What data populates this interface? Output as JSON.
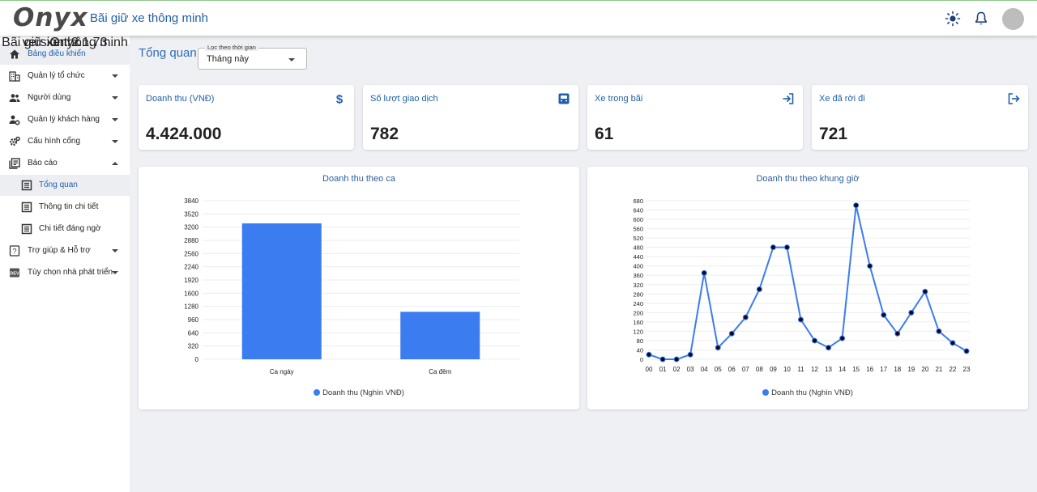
{
  "header": {
    "logo": "Onyx",
    "subtitle": "Bãi giữ xe thông minh"
  },
  "icons": {
    "theme": "sun-icon",
    "notifications": "bell-icon",
    "avatar": "user-avatar"
  },
  "colors": {
    "accent": "#1f5fa8",
    "chart": "#3b7cf0",
    "marker": "#0a0a28"
  },
  "sidebar": {
    "items": [
      {
        "label": "Bảng điều khiển",
        "icon": "home-icon",
        "active": true
      },
      {
        "label": "Quản lý tổ chức",
        "icon": "building-icon",
        "expandable": true
      },
      {
        "label": "Người dùng",
        "icon": "users-icon",
        "expandable": true
      },
      {
        "label": "Quản lý khách hàng",
        "icon": "customer-settings-icon",
        "expandable": true
      },
      {
        "label": "Cấu hình cổng",
        "icon": "gears-icon",
        "expandable": true
      },
      {
        "label": "Báo cáo",
        "icon": "reports-icon",
        "expanded": true
      }
    ],
    "sub_items": [
      {
        "label": "Tổng quan",
        "icon": "document-icon",
        "active": true
      },
      {
        "label": "Thông tin chi tiết",
        "icon": "document-icon"
      },
      {
        "label": "Chi tiết đáng ngờ",
        "icon": "document-icon"
      }
    ],
    "bottom_items": [
      {
        "label": "Trợ giúp & Hỗ trợ",
        "icon": "help-icon",
        "expandable": true
      },
      {
        "label": "Tùy chọn nhà phát triển",
        "icon": "dev-icon",
        "expandable": true
      }
    ],
    "footer": {
      "logo": "Onyx",
      "subtitle": "Bãi giữ xe thông minh",
      "version": "version: 2.1.73"
    }
  },
  "main": {
    "title": "Tổng quan",
    "filter": {
      "legend": "Lọc theo thời gian",
      "value": "Tháng này"
    },
    "stats": [
      {
        "label": "Doanh thu (VNĐ)",
        "value": "4.424.000",
        "icon": "dollar-icon"
      },
      {
        "label": "Số lượt giao dịch",
        "value": "782",
        "icon": "car-icon"
      },
      {
        "label": "Xe trong bãi",
        "value": "61",
        "icon": "login-icon"
      },
      {
        "label": "Xe đã rời đi",
        "value": "721",
        "icon": "logout-icon"
      }
    ]
  },
  "chart_data": [
    {
      "type": "bar",
      "title": "Doanh thu theo ca",
      "categories": [
        "Ca ngày",
        "Ca đêm"
      ],
      "series": [
        {
          "name": "Doanh thu (Nghìn VNĐ)",
          "values": [
            3290,
            1150
          ]
        }
      ],
      "y_ticks": [
        "0",
        "320",
        "640",
        "960",
        "1280",
        "1600",
        "1920",
        "2240",
        "2560",
        "2880",
        "3200",
        "3520",
        "3840"
      ],
      "ylim": [
        0,
        3840
      ],
      "legend": "bottom"
    },
    {
      "type": "line",
      "title": "Doanh thu theo khung giờ",
      "categories": [
        "00",
        "01",
        "02",
        "03",
        "04",
        "05",
        "06",
        "07",
        "08",
        "09",
        "10",
        "11",
        "12",
        "13",
        "14",
        "15",
        "16",
        "17",
        "18",
        "19",
        "20",
        "21",
        "22",
        "23"
      ],
      "series": [
        {
          "name": "Doanh thu (Nghìn VNĐ)",
          "values": [
            20,
            0,
            0,
            20,
            370,
            50,
            110,
            180,
            300,
            480,
            480,
            170,
            80,
            50,
            90,
            660,
            400,
            190,
            110,
            200,
            290,
            120,
            70,
            35
          ]
        }
      ],
      "y_ticks": [
        "0",
        "40",
        "80",
        "120",
        "160",
        "200",
        "240",
        "280",
        "320",
        "360",
        "400",
        "440",
        "480",
        "520",
        "560",
        "600",
        "640",
        "680"
      ],
      "ylim": [
        0,
        680
      ],
      "legend": "bottom"
    }
  ]
}
